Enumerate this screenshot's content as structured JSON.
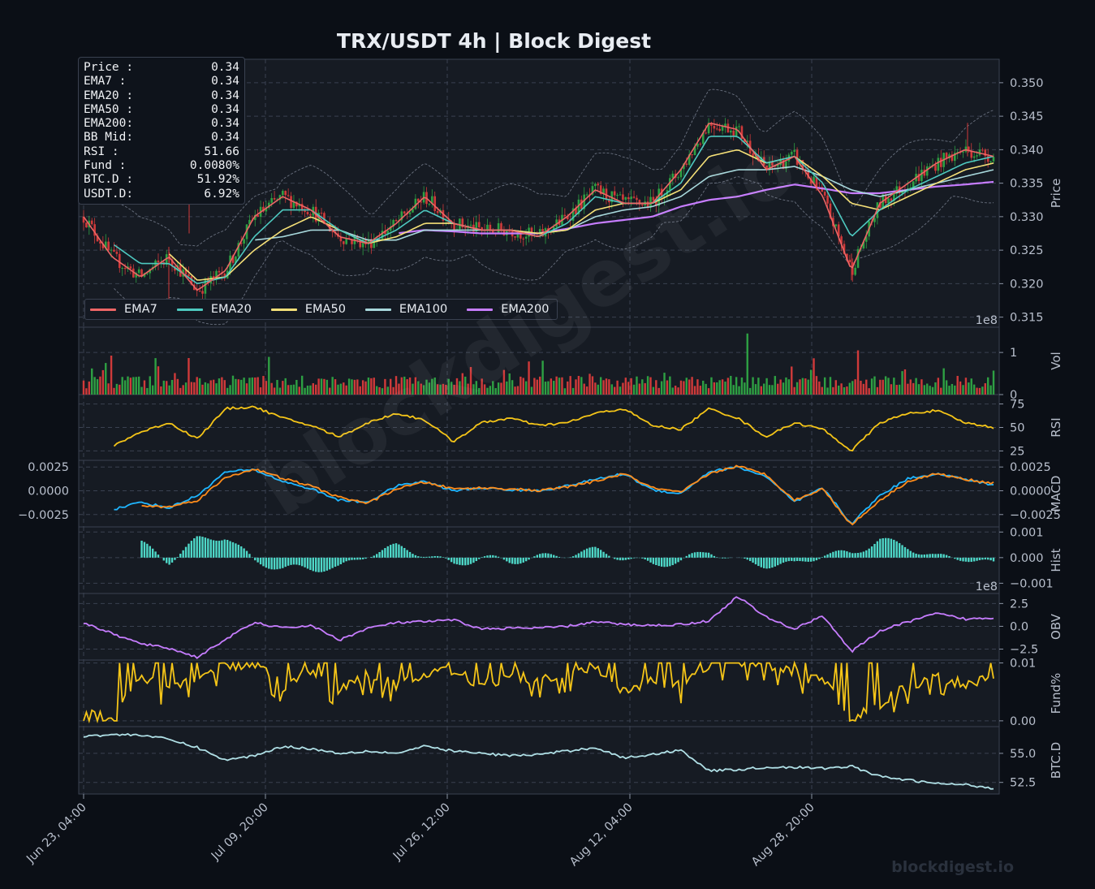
{
  "title": "TRX/USDT  4h  |  Block Digest",
  "info_box": [
    {
      "label": "Price :",
      "value": "0.34"
    },
    {
      "label": "EMA7  :",
      "value": "0.34"
    },
    {
      "label": "EMA20 :",
      "value": "0.34"
    },
    {
      "label": "EMA50 :",
      "value": "0.34"
    },
    {
      "label": "EMA200:",
      "value": "0.34"
    },
    {
      "label": "BB Mid:",
      "value": "0.34"
    },
    {
      "label": "RSI   :",
      "value": "51.66"
    },
    {
      "label": "Fund  :",
      "value": "0.0080%"
    },
    {
      "label": "BTC.D :",
      "value": "51.92%"
    },
    {
      "label": "USDT.D:",
      "value": "6.92%"
    }
  ],
  "legend": [
    {
      "name": "EMA7",
      "color": "#ee6666"
    },
    {
      "name": "EMA20",
      "color": "#4ec9c0"
    },
    {
      "name": "EMA50",
      "color": "#f5e078"
    },
    {
      "name": "EMA100",
      "color": "#a8d8dc"
    },
    {
      "name": "EMA200",
      "color": "#c77dff"
    }
  ],
  "watermark": "blockdigest.io",
  "colors": {
    "background": "#0b0f16",
    "panel": "#161b23",
    "up": "#2ea043",
    "down": "#d03a3a",
    "rsi": "#f5c518",
    "macd": "#1fb6ff",
    "signal": "#ff8c1a",
    "hist": "#4ed8c8",
    "obv": "#c77dff",
    "btcd": "#b0e0e6"
  },
  "chart_data": {
    "type": "line",
    "x_ticks": [
      "Jun 23, 04:00",
      "Jul 09, 20:00",
      "Jul 26, 12:00",
      "Aug 12, 04:00",
      "Aug 28, 20:00"
    ],
    "panels": [
      {
        "name": "Price",
        "ylabel": "Price",
        "ylim": [
          0.3135,
          0.3535
        ],
        "ticks": [
          "0.350",
          "0.345",
          "0.340",
          "0.335",
          "0.330",
          "0.325",
          "0.320",
          "0.315"
        ],
        "tick_values": [
          0.35,
          0.345,
          0.34,
          0.335,
          0.33,
          0.325,
          0.32,
          0.315
        ],
        "exponent": "1e8",
        "series": [
          {
            "name": "EMA7",
            "values": [
              0.33,
              0.324,
              0.321,
              0.324,
              0.319,
              0.322,
              0.33,
              0.333,
              0.331,
              0.327,
              0.326,
              0.329,
              0.333,
              0.329,
              0.328,
              0.328,
              0.327,
              0.33,
              0.334,
              0.332,
              0.332,
              0.337,
              0.344,
              0.343,
              0.337,
              0.339,
              0.333,
              0.322,
              0.332,
              0.335,
              0.338,
              0.34,
              0.339
            ]
          },
          {
            "name": "EMA20",
            "values": [
              null,
              0.326,
              0.323,
              0.323,
              0.32,
              0.321,
              0.327,
              0.331,
              0.331,
              0.328,
              0.326,
              0.328,
              0.331,
              0.329,
              0.328,
              0.328,
              0.327,
              0.329,
              0.333,
              0.332,
              0.332,
              0.335,
              0.342,
              0.342,
              0.338,
              0.339,
              0.335,
              0.327,
              0.331,
              0.334,
              0.336,
              0.338,
              0.339
            ]
          },
          {
            "name": "EMA50",
            "values": [
              null,
              null,
              null,
              0.3245,
              0.3205,
              0.321,
              0.325,
              0.328,
              0.33,
              0.328,
              0.326,
              0.327,
              0.329,
              0.329,
              0.328,
              0.328,
              0.3275,
              0.328,
              0.331,
              0.332,
              0.332,
              0.334,
              0.339,
              0.34,
              0.338,
              0.339,
              0.336,
              0.332,
              0.331,
              0.333,
              0.335,
              0.337,
              0.338
            ]
          },
          {
            "name": "EMA100",
            "values": [
              null,
              null,
              null,
              null,
              null,
              null,
              0.3265,
              0.327,
              0.328,
              0.328,
              0.3265,
              0.3265,
              0.328,
              0.328,
              0.328,
              0.328,
              0.3275,
              0.328,
              0.33,
              0.331,
              0.3315,
              0.333,
              0.336,
              0.337,
              0.337,
              0.3375,
              0.336,
              0.334,
              0.333,
              0.334,
              0.335,
              0.336,
              0.337
            ]
          },
          {
            "name": "EMA200",
            "values": [
              null,
              null,
              null,
              null,
              null,
              null,
              null,
              null,
              null,
              null,
              null,
              0.3275,
              0.328,
              0.3278,
              0.3275,
              0.3275,
              0.3275,
              0.3282,
              0.329,
              0.3295,
              0.33,
              0.3315,
              0.3325,
              0.333,
              0.334,
              0.3348,
              0.3342,
              0.3335,
              0.3335,
              0.334,
              0.3345,
              0.3348,
              0.3352
            ]
          }
        ]
      },
      {
        "name": "Vol",
        "ylabel": "Vol",
        "ylim": [
          0,
          1.6
        ],
        "ticks": [
          "1",
          "0"
        ],
        "tick_values": [
          1,
          0
        ]
      },
      {
        "name": "RSI",
        "ylabel": "RSI",
        "ylim": [
          15,
          85
        ],
        "ticks": [
          "75",
          "50",
          "25"
        ],
        "tick_values": [
          75,
          50,
          25
        ],
        "series": [
          {
            "name": "RSI",
            "values": [
              null,
              30,
              45,
              55,
              38,
              70,
              72,
              60,
              52,
              40,
              55,
              65,
              58,
              35,
              55,
              60,
              52,
              55,
              65,
              70,
              52,
              48,
              70,
              60,
              40,
              55,
              48,
              25,
              55,
              65,
              68,
              55,
              50
            ]
          }
        ]
      },
      {
        "name": "MACD",
        "ylabel": "MACD",
        "ylim": [
          -0.0038,
          0.0032
        ],
        "ticks": [
          "0.0025",
          "0.0000",
          "−0.0025"
        ],
        "tick_values": [
          0.0025,
          0,
          -0.0025
        ],
        "series": [
          {
            "name": "MACD",
            "values": [
              null,
              -0.002,
              -0.0012,
              -0.0018,
              -0.0005,
              0.002,
              0.0022,
              0.001,
              0.0002,
              -0.001,
              -0.0012,
              0.0005,
              0.001,
              0.0,
              0.0003,
              0.0001,
              0.0,
              0.0005,
              0.0012,
              0.0018,
              0.0001,
              -0.0003,
              0.002,
              0.0025,
              0.0015,
              -0.0012,
              0.0003,
              -0.0035,
              -0.0005,
              0.0013,
              0.0018,
              0.0012,
              0.0006
            ]
          },
          {
            "name": "Signal",
            "values": [
              null,
              null,
              -0.0016,
              -0.0017,
              -0.001,
              0.0014,
              0.0023,
              0.0013,
              0.0005,
              -0.0007,
              -0.0013,
              0.0002,
              0.0009,
              0.0002,
              0.0003,
              0.0002,
              0.0,
              0.0004,
              0.001,
              0.0018,
              0.0003,
              -0.0002,
              0.0018,
              0.0026,
              0.0017,
              -0.001,
              0.0002,
              -0.0036,
              -0.001,
              0.001,
              0.0018,
              0.0012,
              0.0008
            ]
          }
        ]
      },
      {
        "name": "Hist",
        "ylabel": "Hist",
        "ylim": [
          -0.0014,
          0.0012
        ],
        "ticks": [
          "0.001",
          "0.000",
          "−0.001"
        ],
        "tick_values": [
          0.001,
          0,
          -0.001
        ],
        "exponent": "1e8"
      },
      {
        "name": "OBV",
        "ylabel": "OBV",
        "ylim": [
          -3.7,
          3.6
        ],
        "ticks": [
          "2.5",
          "0.0",
          "−2.5"
        ],
        "tick_values": [
          2.5,
          0,
          -2.5
        ],
        "series": [
          {
            "name": "OBV",
            "values": [
              0.4,
              -0.8,
              -1.9,
              -2.4,
              -3.4,
              -1.4,
              0.4,
              -0.2,
              0.1,
              -1.5,
              -0.2,
              0.4,
              0.5,
              0.7,
              -0.3,
              -0.2,
              -0.2,
              0.0,
              0.5,
              0.2,
              0.1,
              0.2,
              0.6,
              3.3,
              1.0,
              -0.3,
              1.2,
              -2.8,
              -0.5,
              0.5,
              1.4,
              0.8,
              0.9
            ]
          }
        ]
      },
      {
        "name": "Fund%",
        "ylabel": "Fund%",
        "ylim": [
          -0.001,
          0.0105
        ],
        "ticks": [
          "0.01",
          "0.00"
        ],
        "tick_values": [
          0.01,
          0
        ],
        "series": [
          {
            "name": "Fund%",
            "values": [
              0.0025,
              0.0,
              0.008,
              0.005,
              0.008,
              0.0095,
              0.01,
              0.006,
              0.009,
              0.005,
              0.008,
              0.006,
              0.008,
              0.009,
              0.006,
              0.008,
              0.007,
              0.008,
              0.009,
              0.005,
              0.007,
              0.006,
              0.01,
              0.01,
              0.01,
              0.008,
              0.007,
              0.0,
              0.003,
              0.006,
              0.008,
              0.006,
              0.008
            ]
          }
        ]
      },
      {
        "name": "BTC.D",
        "ylabel": "BTC.D",
        "ylim": [
          51.5,
          57.3
        ],
        "ticks": [
          "55.0",
          "52.5"
        ],
        "tick_values": [
          55,
          52.5
        ],
        "series": [
          {
            "name": "BTC.D",
            "values": [
              56.5,
              56.6,
              56.6,
              56.2,
              55.5,
              54.4,
              54.8,
              55.6,
              55.4,
              55.0,
              55.2,
              55.0,
              55.6,
              55.2,
              55.0,
              54.8,
              54.9,
              55.2,
              55.5,
              54.6,
              54.9,
              55.3,
              53.5,
              53.6,
              53.8,
              53.8,
              53.7,
              53.9,
              53.0,
              52.7,
              52.4,
              52.3,
              52.0
            ]
          }
        ]
      }
    ]
  }
}
